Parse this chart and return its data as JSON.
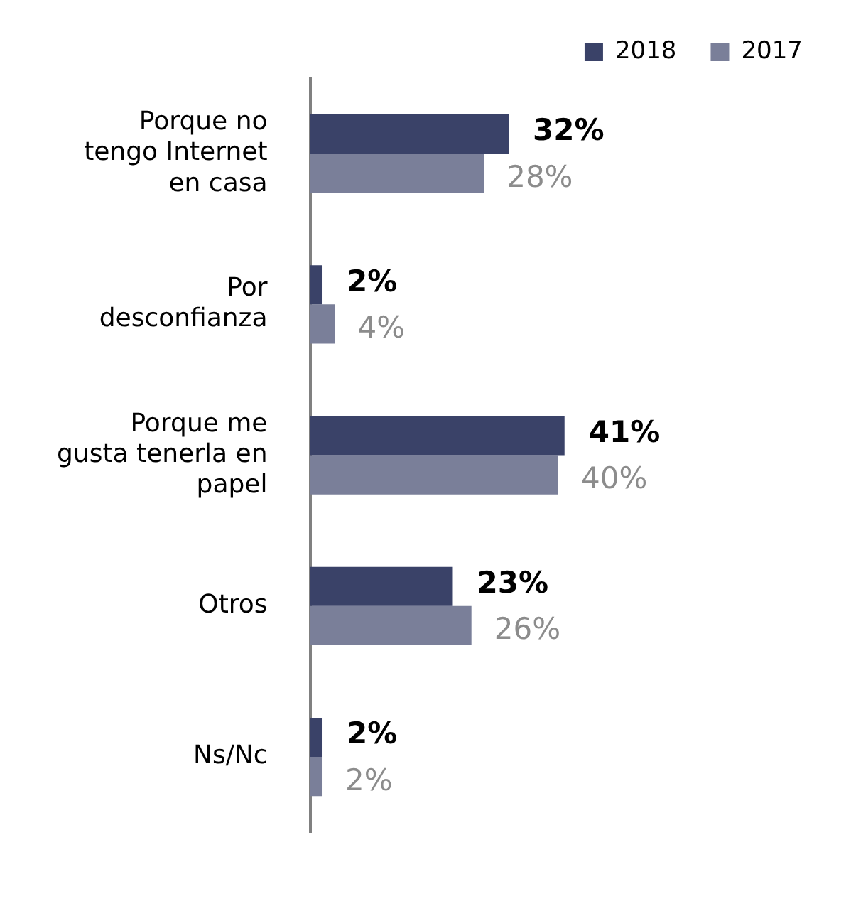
{
  "chart_data": {
    "type": "bar",
    "orientation": "horizontal",
    "categories": [
      "Porque no\ntengo Internet\nen casa",
      "Por\ndesconfianza",
      "Porque me\ngusta tenerla en\npapel",
      "Otros",
      "Ns/Nc"
    ],
    "series": [
      {
        "name": "2018",
        "color": "#3a4268",
        "values": [
          32,
          2,
          41,
          23,
          2
        ],
        "value_labels": [
          "32%",
          "2%",
          "41%",
          "23%",
          "2%"
        ]
      },
      {
        "name": "2017",
        "color": "#7a7f99",
        "values": [
          28,
          4,
          40,
          26,
          2
        ],
        "value_labels": [
          "28%",
          "4%",
          "40%",
          "26%",
          "2%"
        ]
      }
    ],
    "legend": "top right"
  }
}
